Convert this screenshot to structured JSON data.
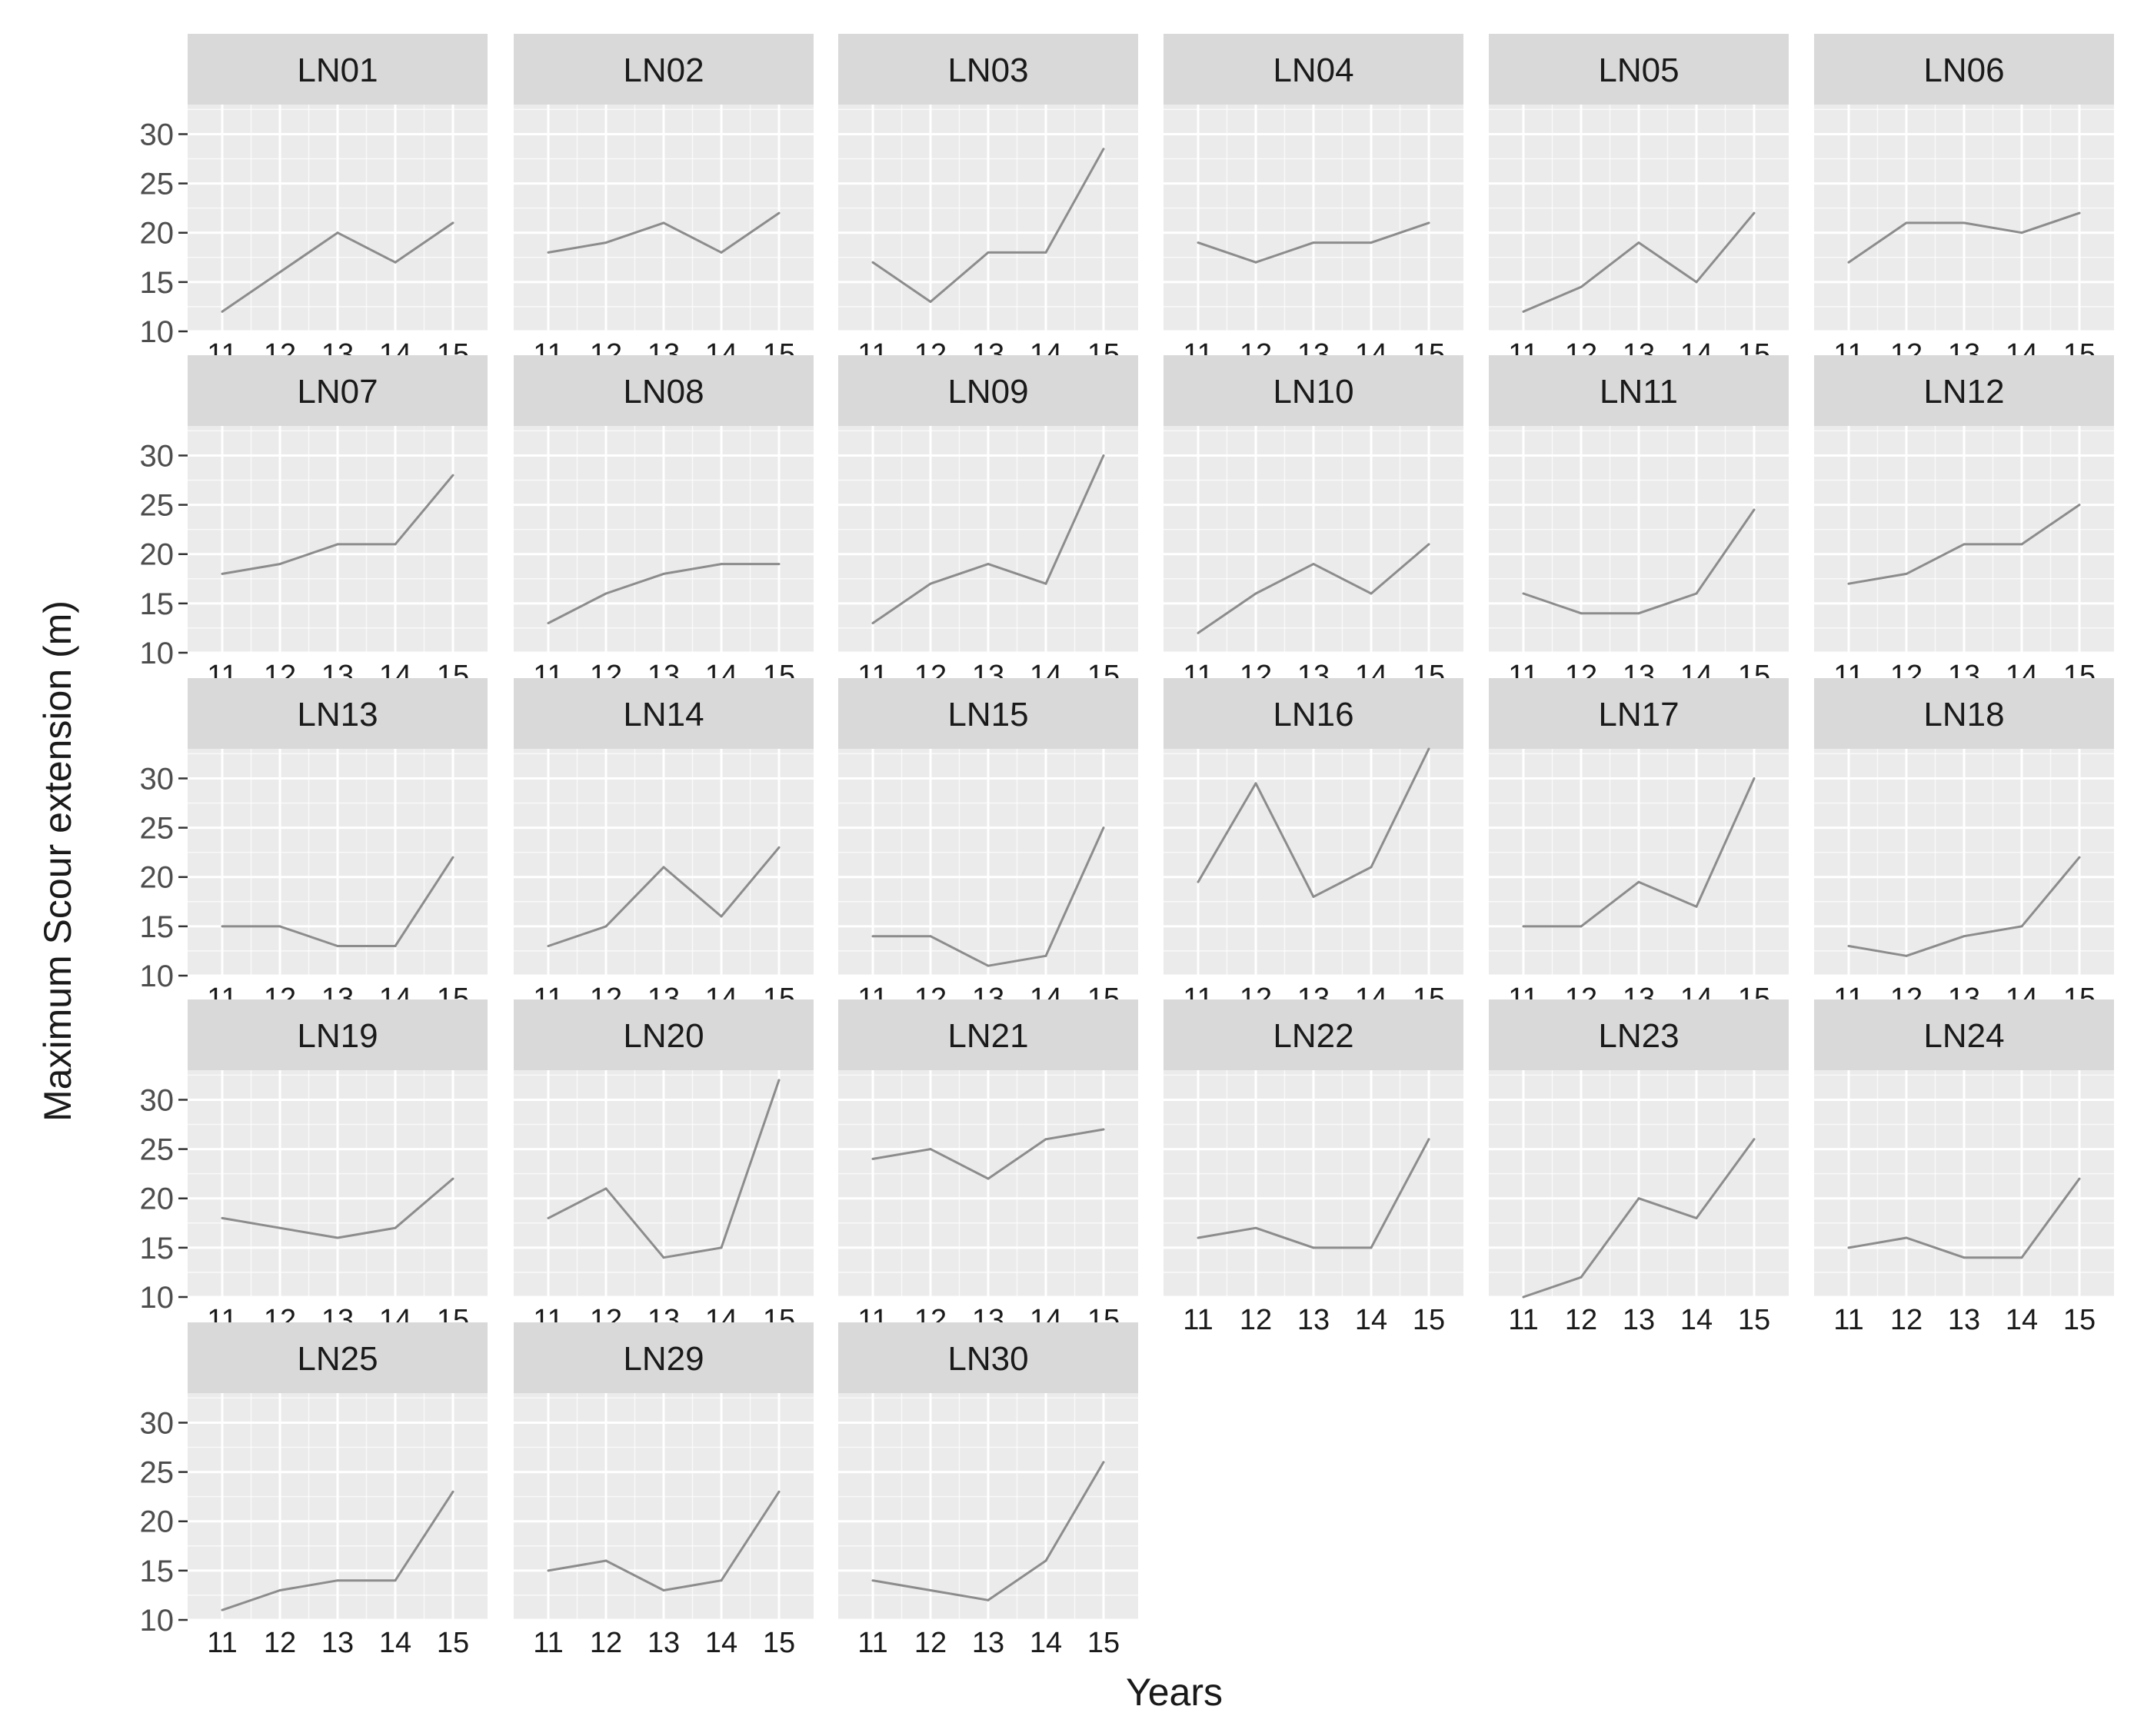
{
  "chart_data": {
    "type": "line",
    "facet": "small-multiples",
    "ylabel": "Maximum Scour extension (m)",
    "xlabel": "Years",
    "x": [
      "11",
      "12",
      "13",
      "14",
      "15"
    ],
    "y_ticks": [
      "10",
      "15",
      "20",
      "25",
      "30"
    ],
    "ylim": [
      10,
      33
    ],
    "grid": true,
    "panels": [
      {
        "label": "LN01",
        "values": [
          12,
          16,
          20,
          17,
          21
        ]
      },
      {
        "label": "LN02",
        "values": [
          18,
          19,
          21,
          18,
          22
        ]
      },
      {
        "label": "LN03",
        "values": [
          17,
          13,
          18,
          18,
          28.5
        ]
      },
      {
        "label": "LN04",
        "values": [
          19,
          17,
          19,
          19,
          21
        ]
      },
      {
        "label": "LN05",
        "values": [
          12,
          14.5,
          19,
          15,
          22
        ]
      },
      {
        "label": "LN06",
        "values": [
          17,
          21,
          21,
          20,
          22
        ]
      },
      {
        "label": "LN07",
        "values": [
          18,
          19,
          21,
          21,
          28
        ]
      },
      {
        "label": "LN08",
        "values": [
          13,
          16,
          18,
          19,
          19
        ]
      },
      {
        "label": "LN09",
        "values": [
          13,
          17,
          19,
          17,
          30
        ]
      },
      {
        "label": "LN10",
        "values": [
          12,
          16,
          19,
          16,
          21
        ]
      },
      {
        "label": "LN11",
        "values": [
          16,
          14,
          14,
          16,
          24.5
        ]
      },
      {
        "label": "LN12",
        "values": [
          17,
          18,
          21,
          21,
          25
        ]
      },
      {
        "label": "LN13",
        "values": [
          15,
          15,
          13,
          13,
          22
        ]
      },
      {
        "label": "LN14",
        "values": [
          13,
          15,
          21,
          16,
          23
        ]
      },
      {
        "label": "LN15",
        "values": [
          14,
          14,
          11,
          12,
          25
        ]
      },
      {
        "label": "LN16",
        "values": [
          19.5,
          29.5,
          18,
          21,
          33
        ]
      },
      {
        "label": "LN17",
        "values": [
          15,
          15,
          19.5,
          17,
          30
        ]
      },
      {
        "label": "LN18",
        "values": [
          13,
          12,
          14,
          15,
          22
        ]
      },
      {
        "label": "LN19",
        "values": [
          18,
          17,
          16,
          17,
          22
        ]
      },
      {
        "label": "LN20",
        "values": [
          18,
          21,
          14,
          15,
          32
        ]
      },
      {
        "label": "LN21",
        "values": [
          24,
          25,
          22,
          26,
          27
        ]
      },
      {
        "label": "LN22",
        "values": [
          16,
          17,
          15,
          15,
          26
        ]
      },
      {
        "label": "LN23",
        "values": [
          10,
          12,
          20,
          18,
          26
        ]
      },
      {
        "label": "LN24",
        "values": [
          15,
          16,
          14,
          14,
          22
        ]
      },
      {
        "label": "LN25",
        "values": [
          11,
          13,
          14,
          14,
          23
        ]
      },
      {
        "label": "LN29",
        "values": [
          15,
          16,
          13,
          14,
          23
        ]
      },
      {
        "label": "LN30",
        "values": [
          14,
          13,
          12,
          16,
          26
        ]
      }
    ],
    "colors": {
      "panel_background": "#ebebeb",
      "strip_background": "#d9d9d9",
      "gridline": "#ffffff",
      "line": "#8c8c8c",
      "text": "#1a1a1a",
      "strip_text": "#1a1a1a"
    }
  }
}
